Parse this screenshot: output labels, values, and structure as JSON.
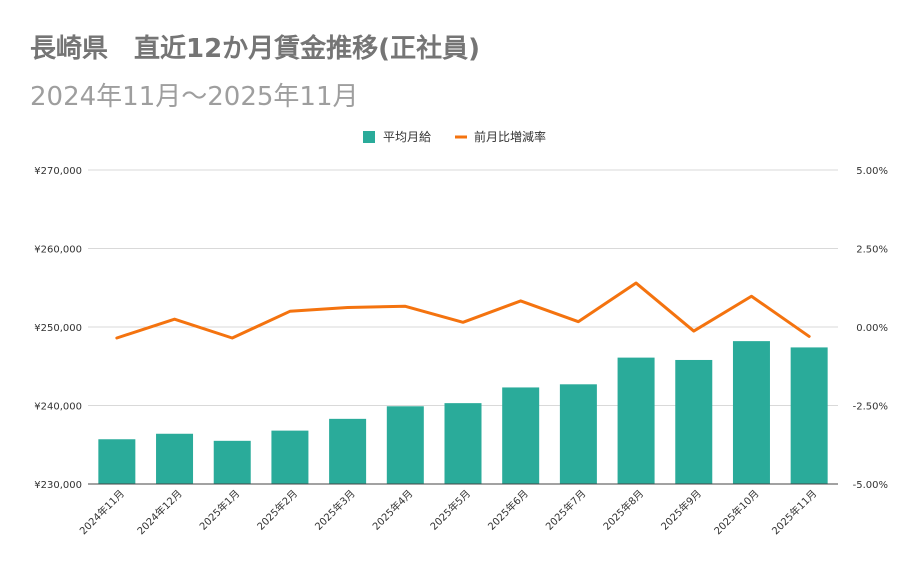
{
  "title": "長崎県　直近12か月賃金推移(正社員)",
  "subtitle": "2024年11月～2025年11月",
  "colors": {
    "bar": "#2aab9a",
    "line": "#f4730f",
    "grid": "#d9d9d9",
    "axis": "#444444"
  },
  "chart_data": {
    "type": "bar",
    "title": "長崎県　直近12か月賃金推移(正社員)",
    "subtitle": "2024年11月～2025年11月",
    "categories": [
      "2024年11月",
      "2024年12月",
      "2025年1月",
      "2025年2月",
      "2025年3月",
      "2025年4月",
      "2025年5月",
      "2025年6月",
      "2025年7月",
      "2025年8月",
      "2025年9月",
      "2025年10月",
      "2025年11月"
    ],
    "legend": {
      "position": "top",
      "entries": [
        "平均月給",
        "前月比増減率"
      ]
    },
    "series": [
      {
        "name": "平均月給",
        "type": "bar",
        "axis": "left",
        "values": [
          235700,
          236400,
          235500,
          236800,
          238300,
          239900,
          240300,
          242300,
          242700,
          246100,
          245800,
          248200,
          247400
        ]
      },
      {
        "name": "前月比増減率",
        "type": "line",
        "axis": "right",
        "values": [
          -0.35,
          0.25,
          -0.35,
          0.5,
          0.62,
          0.66,
          0.15,
          0.83,
          0.17,
          1.4,
          -0.13,
          0.98,
          -0.3
        ]
      }
    ],
    "y_left": {
      "min": 230000,
      "max": 270000,
      "ticks": [
        230000,
        240000,
        250000,
        260000,
        270000
      ],
      "tick_labels": [
        "¥230,000",
        "¥240,000",
        "¥250,000",
        "¥260,000",
        "¥270,000"
      ]
    },
    "y_right": {
      "min": -5,
      "max": 5,
      "ticks": [
        -5,
        -2.5,
        0,
        2.5,
        5
      ],
      "tick_labels": [
        "-5.00%",
        "-2.50%",
        "0.00%",
        "2.50%",
        "5.00%"
      ]
    },
    "grid": true
  }
}
